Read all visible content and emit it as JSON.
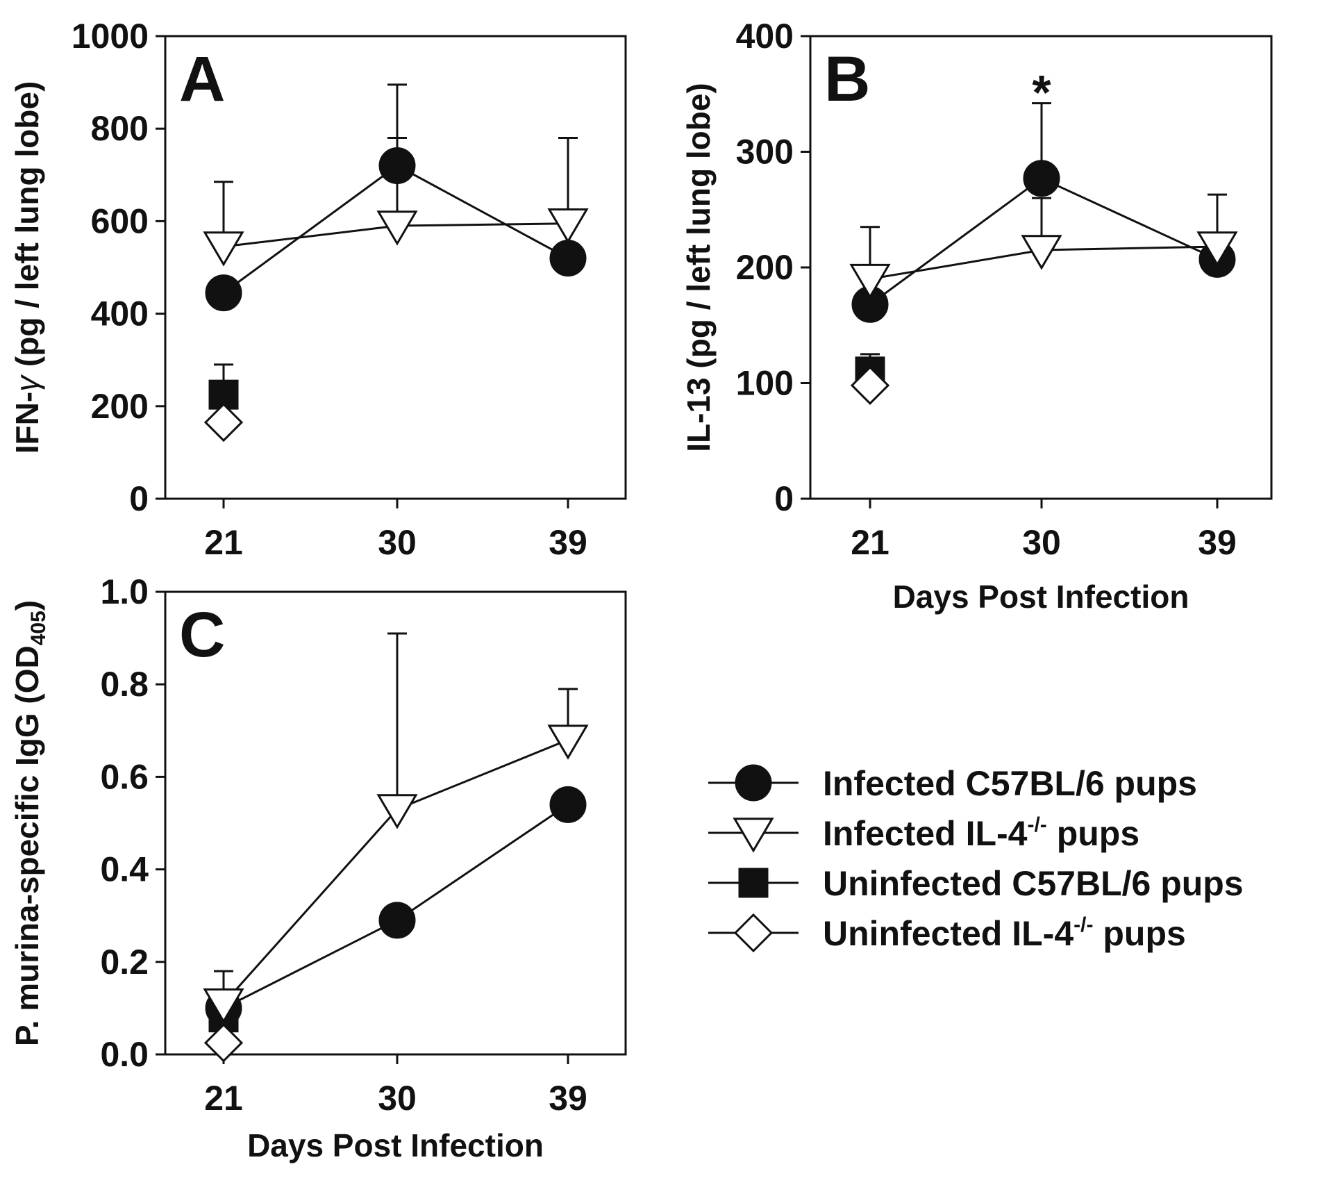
{
  "chart_data": [
    {
      "panel": "A",
      "type": "line",
      "ylabel_parts": [
        "IFN-",
        "γ",
        " (pg / left lung lobe)"
      ],
      "xlabel": "",
      "ylim": [
        0,
        1000
      ],
      "yticks": [
        "0",
        "200",
        "400",
        "600",
        "800",
        "1000"
      ],
      "categories": [
        "21",
        "30",
        "39"
      ],
      "annotations": [],
      "series": [
        {
          "key": "inf_c57",
          "x": [
            "21",
            "30",
            "39"
          ],
          "values": [
            445,
            720,
            520
          ],
          "err": [
            0,
            60,
            0
          ],
          "marker": "circle",
          "fill": "#111111",
          "line": true
        },
        {
          "key": "inf_il4",
          "x": [
            "21",
            "30",
            "39"
          ],
          "values": [
            545,
            590,
            595
          ],
          "err": [
            140,
            305,
            185
          ],
          "marker": "triangle-down",
          "fill": "#ffffff",
          "line": true
        },
        {
          "key": "uninf_c57",
          "x": [
            "21"
          ],
          "values": [
            225
          ],
          "err": [
            65
          ],
          "marker": "square",
          "fill": "#111111",
          "line": false
        },
        {
          "key": "uninf_il4",
          "x": [
            "21"
          ],
          "values": [
            165
          ],
          "err": [
            0
          ],
          "marker": "diamond",
          "fill": "#ffffff",
          "line": false
        }
      ]
    },
    {
      "panel": "B",
      "type": "line",
      "ylabel_parts": [
        "IL-13 (pg / left lung lobe)"
      ],
      "xlabel": "Days Post Infection",
      "ylim": [
        0,
        400
      ],
      "yticks": [
        "0",
        "100",
        "200",
        "300",
        "400"
      ],
      "categories": [
        "21",
        "30",
        "39"
      ],
      "annotations": [
        {
          "x": "30",
          "text": "*"
        }
      ],
      "series": [
        {
          "key": "inf_c57",
          "x": [
            "21",
            "30",
            "39"
          ],
          "values": [
            168,
            277,
            207
          ],
          "err": [
            0,
            65,
            0
          ],
          "marker": "circle",
          "fill": "#111111",
          "line": true
        },
        {
          "key": "inf_il4",
          "x": [
            "21",
            "30",
            "39"
          ],
          "values": [
            190,
            215,
            218
          ],
          "err": [
            45,
            45,
            45
          ],
          "marker": "triangle-down",
          "fill": "#ffffff",
          "line": true
        },
        {
          "key": "uninf_c57",
          "x": [
            "21"
          ],
          "values": [
            110
          ],
          "err": [
            15
          ],
          "marker": "square",
          "fill": "#111111",
          "line": false
        },
        {
          "key": "uninf_il4",
          "x": [
            "21"
          ],
          "values": [
            98
          ],
          "err": [
            0
          ],
          "marker": "diamond",
          "fill": "#ffffff",
          "line": false
        }
      ]
    },
    {
      "panel": "C",
      "type": "line",
      "ylabel_parts": [
        "P. murina-specific IgG (OD",
        "405",
        ")"
      ],
      "xlabel": "Days Post Infection",
      "ylim": [
        0,
        1.0
      ],
      "yticks": [
        "0.0",
        "0.2",
        "0.4",
        "0.6",
        "0.8",
        "1.0"
      ],
      "categories": [
        "21",
        "30",
        "39"
      ],
      "annotations": [],
      "series": [
        {
          "key": "inf_c57",
          "x": [
            "21",
            "30",
            "39"
          ],
          "values": [
            0.1,
            0.29,
            0.54
          ],
          "err": [
            0,
            0,
            0
          ],
          "marker": "circle",
          "fill": "#111111",
          "line": true
        },
        {
          "key": "inf_il4",
          "x": [
            "21",
            "30",
            "39"
          ],
          "values": [
            0.11,
            0.53,
            0.68
          ],
          "err": [
            0.07,
            0.38,
            0.11
          ],
          "marker": "triangle-down",
          "fill": "#ffffff",
          "line": true
        },
        {
          "key": "uninf_c57",
          "x": [
            "21"
          ],
          "values": [
            0.08
          ],
          "err": [
            0
          ],
          "marker": "square",
          "fill": "#111111",
          "line": false
        },
        {
          "key": "uninf_il4",
          "x": [
            "21"
          ],
          "values": [
            0.025
          ],
          "err": [
            0
          ],
          "marker": "diamond",
          "fill": "#ffffff",
          "line": false
        }
      ]
    }
  ],
  "legend": [
    {
      "key": "inf_c57",
      "label": "Infected C57BL/6 pups",
      "sup": "",
      "suffix": "",
      "marker": "circle",
      "fill": "#111111"
    },
    {
      "key": "inf_il4",
      "label": "Infected IL-4",
      "sup": "-/-",
      "suffix": " pups",
      "marker": "triangle-down",
      "fill": "#ffffff"
    },
    {
      "key": "uninf_c57",
      "label": "Uninfected C57BL/6 pups",
      "sup": "",
      "suffix": "",
      "marker": "square",
      "fill": "#111111"
    },
    {
      "key": "uninf_il4",
      "label": "Uninfected IL-4",
      "sup": "-/-",
      "suffix": " pups",
      "marker": "diamond",
      "fill": "#ffffff"
    }
  ]
}
